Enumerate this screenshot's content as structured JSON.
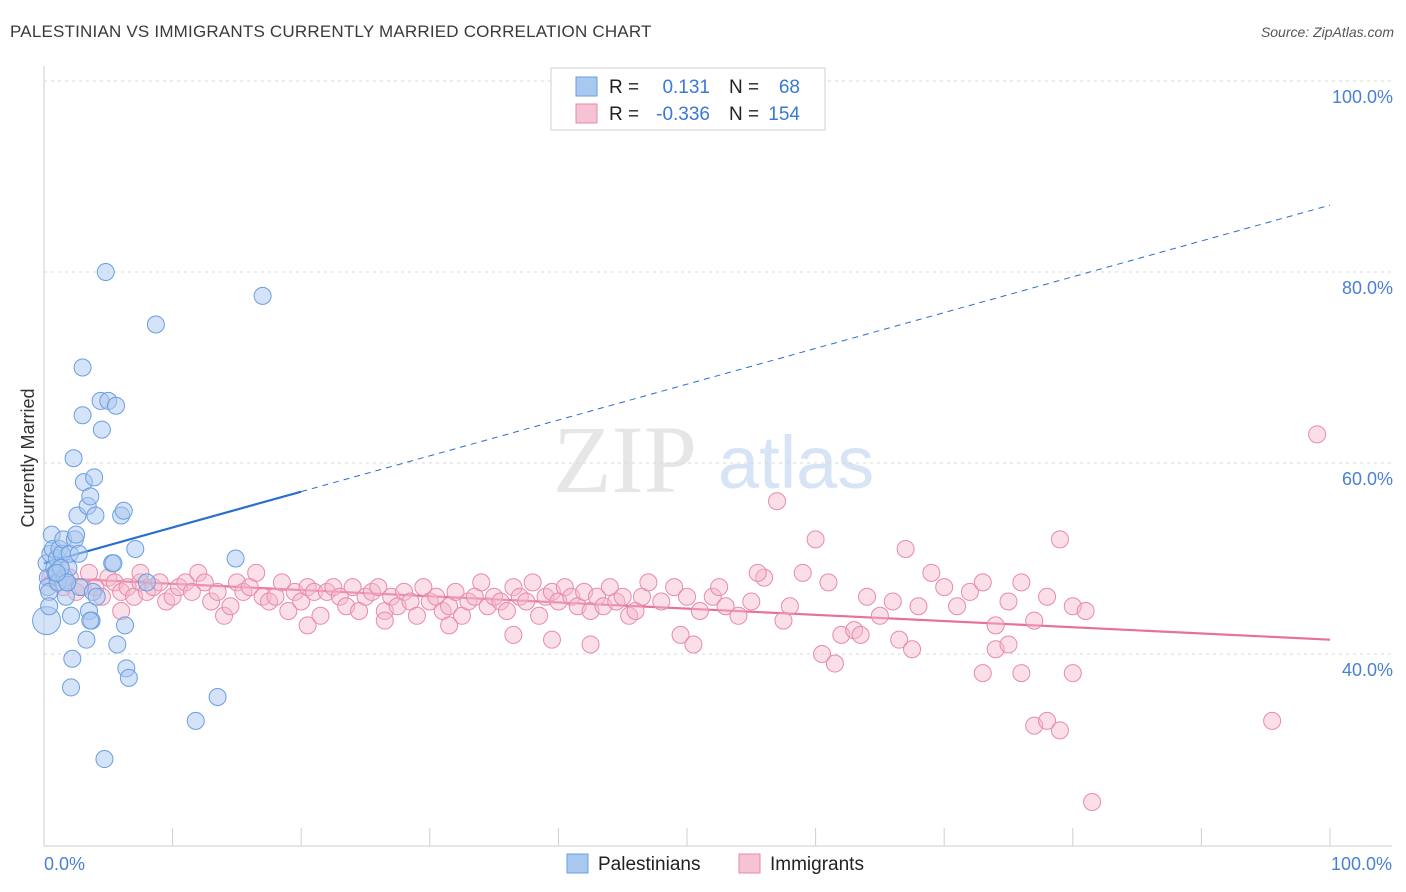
{
  "title": "PALESTINIAN VS IMMIGRANTS CURRENTLY MARRIED CORRELATION CHART",
  "source": "Source: ZipAtlas.com",
  "watermark": {
    "zip": "ZIP",
    "atlas": "atlas"
  },
  "colors": {
    "blue_fill": "#a9c8f0",
    "blue_stroke": "#6b9ee0",
    "blue_line": "#2a6fcf",
    "pink_fill": "#f5b8cc",
    "pink_stroke": "#e88aa9",
    "pink_line": "#e8709a",
    "grid": "#d9d9d9",
    "axis_text": "#4a7fd4"
  },
  "legend": {
    "rows": [
      {
        "r_label": "R =",
        "r_value": "0.131",
        "n_label": "N =",
        "n_value": "68"
      },
      {
        "r_label": "R =",
        "r_value": "-0.336",
        "n_label": "N =",
        "n_value": "154"
      }
    ]
  },
  "bottom_legend": [
    "Palestinians",
    "Immigrants"
  ],
  "chart_data": {
    "type": "scatter",
    "title": "PALESTINIAN VS IMMIGRANTS CURRENTLY MARRIED CORRELATION CHART",
    "xlabel": "",
    "ylabel": "Currently Married",
    "xlim": [
      0,
      100
    ],
    "ylim": [
      20,
      100
    ],
    "x_tick_labels": [
      "0.0%",
      "100.0%"
    ],
    "y_tick_labels": [
      "40.0%",
      "60.0%",
      "80.0%",
      "100.0%"
    ],
    "y_ticks": [
      40,
      60,
      80,
      100
    ],
    "series": [
      {
        "name": "Palestinians",
        "r": 0.131,
        "n": 68,
        "trend": {
          "x0": 0,
          "y0": 49.5,
          "x1": 20,
          "y1": 57.0,
          "dashed_to_x": 100,
          "dashed_to_y": 87.0
        },
        "points": [
          [
            0.2,
            49.5
          ],
          [
            0.3,
            48
          ],
          [
            0.3,
            47
          ],
          [
            0.4,
            46.5
          ],
          [
            0.5,
            50.5
          ],
          [
            0.6,
            52.5
          ],
          [
            0.7,
            51
          ],
          [
            0.8,
            49
          ],
          [
            0.9,
            48.5
          ],
          [
            1.0,
            50
          ],
          [
            1.1,
            47.5
          ],
          [
            1.2,
            51
          ],
          [
            1.3,
            49
          ],
          [
            1.4,
            50.5
          ],
          [
            1.5,
            52
          ],
          [
            1.6,
            48
          ],
          [
            1.7,
            46
          ],
          [
            1.8,
            47.5
          ],
          [
            1.9,
            49
          ],
          [
            2.0,
            50.5
          ],
          [
            2.1,
            44
          ],
          [
            2.2,
            39.5
          ],
          [
            2.3,
            60.5
          ],
          [
            2.4,
            52
          ],
          [
            2.6,
            54.5
          ],
          [
            2.7,
            50.5
          ],
          [
            2.8,
            47
          ],
          [
            3.0,
            65
          ],
          [
            3.0,
            70
          ],
          [
            3.1,
            58
          ],
          [
            3.3,
            41.5
          ],
          [
            3.4,
            55.5
          ],
          [
            3.5,
            44.5
          ],
          [
            3.6,
            56.5
          ],
          [
            3.7,
            43.5
          ],
          [
            3.8,
            46.5
          ],
          [
            3.9,
            58.5
          ],
          [
            4.0,
            54.5
          ],
          [
            4.1,
            46
          ],
          [
            4.4,
            66.5
          ],
          [
            4.5,
            63.5
          ],
          [
            4.8,
            80
          ],
          [
            5.0,
            66.5
          ],
          [
            5.3,
            49.5
          ],
          [
            5.6,
            66
          ],
          [
            5.7,
            41
          ],
          [
            6.0,
            54.5
          ],
          [
            6.2,
            55
          ],
          [
            6.3,
            43
          ],
          [
            6.4,
            38.5
          ],
          [
            6.6,
            37.5
          ],
          [
            7.1,
            51
          ],
          [
            8.0,
            47.5
          ],
          [
            8.7,
            74.5
          ],
          [
            11.8,
            33
          ],
          [
            13.5,
            35.5
          ],
          [
            14.9,
            50
          ],
          [
            17.0,
            77.5
          ],
          [
            4.7,
            29
          ],
          [
            2.1,
            36.5
          ],
          [
            0.2,
            43.5
          ],
          [
            0.4,
            45
          ],
          [
            1.3,
            49
          ],
          [
            1.8,
            47.5
          ],
          [
            3.6,
            43.5
          ],
          [
            2.5,
            52.5
          ],
          [
            5.4,
            49.5
          ],
          [
            1.0,
            48.5
          ]
        ]
      },
      {
        "name": "Immigrants",
        "r": -0.336,
        "n": 154,
        "trend": {
          "x0": 0,
          "y0": 48.0,
          "x1": 100,
          "y1": 41.5
        },
        "points": [
          [
            0.5,
            48
          ],
          [
            1.0,
            47.5
          ],
          [
            1.5,
            47
          ],
          [
            2.0,
            48
          ],
          [
            2.5,
            46.5
          ],
          [
            3.0,
            47
          ],
          [
            3.5,
            48.5
          ],
          [
            4.0,
            47
          ],
          [
            4.5,
            46
          ],
          [
            5.0,
            48
          ],
          [
            5.5,
            47.5
          ],
          [
            6.0,
            46.5
          ],
          [
            6.5,
            47
          ],
          [
            7.0,
            46
          ],
          [
            7.5,
            47.5
          ],
          [
            8.0,
            46.5
          ],
          [
            8.5,
            47
          ],
          [
            9.0,
            47.5
          ],
          [
            9.5,
            45.5
          ],
          [
            10.0,
            46
          ],
          [
            10.5,
            47
          ],
          [
            11.0,
            47.5
          ],
          [
            11.5,
            46.5
          ],
          [
            12.0,
            48.5
          ],
          [
            12.5,
            47.5
          ],
          [
            13.0,
            45.5
          ],
          [
            13.5,
            46.5
          ],
          [
            14.0,
            44
          ],
          [
            14.5,
            45
          ],
          [
            15.0,
            47.5
          ],
          [
            15.5,
            46.5
          ],
          [
            16.0,
            47
          ],
          [
            16.5,
            48.5
          ],
          [
            17.0,
            46
          ],
          [
            17.5,
            45.5
          ],
          [
            18.0,
            46
          ],
          [
            18.5,
            47.5
          ],
          [
            19.0,
            44.5
          ],
          [
            19.5,
            46.5
          ],
          [
            20.0,
            45.5
          ],
          [
            20.5,
            47
          ],
          [
            21.0,
            46.5
          ],
          [
            21.5,
            44
          ],
          [
            22.0,
            46.5
          ],
          [
            22.5,
            47
          ],
          [
            23.0,
            46
          ],
          [
            23.5,
            45
          ],
          [
            24.0,
            47
          ],
          [
            24.5,
            44.5
          ],
          [
            25.0,
            46
          ],
          [
            25.5,
            46.5
          ],
          [
            26.0,
            47
          ],
          [
            26.5,
            44.5
          ],
          [
            27.0,
            46
          ],
          [
            27.5,
            45
          ],
          [
            28.0,
            46.5
          ],
          [
            28.5,
            45.5
          ],
          [
            29.0,
            44
          ],
          [
            29.5,
            47
          ],
          [
            30.0,
            45.5
          ],
          [
            30.5,
            46
          ],
          [
            31.0,
            44.5
          ],
          [
            31.5,
            45
          ],
          [
            32.0,
            46.5
          ],
          [
            32.5,
            44
          ],
          [
            33.0,
            45.5
          ],
          [
            33.5,
            46
          ],
          [
            34.0,
            47.5
          ],
          [
            34.5,
            45
          ],
          [
            35.0,
            46
          ],
          [
            35.5,
            45.5
          ],
          [
            36.0,
            44.5
          ],
          [
            36.5,
            47
          ],
          [
            37.0,
            46
          ],
          [
            37.5,
            45.5
          ],
          [
            38.0,
            47.5
          ],
          [
            38.5,
            44
          ],
          [
            39.0,
            46
          ],
          [
            39.5,
            46.5
          ],
          [
            40.0,
            45.5
          ],
          [
            40.5,
            47
          ],
          [
            41.0,
            46
          ],
          [
            41.5,
            45
          ],
          [
            42.0,
            46.5
          ],
          [
            42.5,
            44.5
          ],
          [
            43.0,
            46
          ],
          [
            43.5,
            45
          ],
          [
            44.0,
            47
          ],
          [
            44.5,
            45.5
          ],
          [
            45.0,
            46
          ],
          [
            45.5,
            44
          ],
          [
            46.0,
            44.5
          ],
          [
            46.5,
            46
          ],
          [
            47.0,
            47.5
          ],
          [
            48.0,
            45.5
          ],
          [
            49.0,
            47
          ],
          [
            50.0,
            46
          ],
          [
            51.0,
            44.5
          ],
          [
            52.0,
            46
          ],
          [
            53.0,
            45
          ],
          [
            54.0,
            44
          ],
          [
            55.0,
            45.5
          ],
          [
            56.0,
            48
          ],
          [
            57.0,
            56
          ],
          [
            58.0,
            45
          ],
          [
            59.0,
            48.5
          ],
          [
            60.0,
            52
          ],
          [
            61.0,
            47.5
          ],
          [
            62.0,
            42
          ],
          [
            63.0,
            42.5
          ],
          [
            64.0,
            46
          ],
          [
            65.0,
            44
          ],
          [
            66.0,
            45.5
          ],
          [
            67.0,
            51
          ],
          [
            68.0,
            45
          ],
          [
            69.0,
            48.5
          ],
          [
            70.0,
            47
          ],
          [
            71.0,
            45
          ],
          [
            72.0,
            46.5
          ],
          [
            73.0,
            47.5
          ],
          [
            74.0,
            43
          ],
          [
            75.0,
            45.5
          ],
          [
            76.0,
            47.5
          ],
          [
            77.0,
            43.5
          ],
          [
            78.0,
            46
          ],
          [
            79.0,
            52
          ],
          [
            80.0,
            45
          ],
          [
            81.0,
            44.5
          ],
          [
            66.5,
            41.5
          ],
          [
            67.5,
            40.5
          ],
          [
            60.5,
            40
          ],
          [
            61.5,
            39
          ],
          [
            63.5,
            42
          ],
          [
            49.5,
            42
          ],
          [
            50.5,
            41
          ],
          [
            57.5,
            43.5
          ],
          [
            55.5,
            48.5
          ],
          [
            52.5,
            47
          ],
          [
            42.5,
            41
          ],
          [
            39.5,
            41.5
          ],
          [
            36.5,
            42
          ],
          [
            31.5,
            43
          ],
          [
            26.5,
            43.5
          ],
          [
            20.5,
            43
          ],
          [
            7.5,
            48.5
          ],
          [
            6.0,
            44.5
          ],
          [
            73.0,
            38
          ],
          [
            74.0,
            40.5
          ],
          [
            75.0,
            41
          ],
          [
            76.0,
            38
          ],
          [
            77.0,
            32.5
          ],
          [
            78.0,
            33
          ],
          [
            79.0,
            32
          ],
          [
            80.0,
            38
          ],
          [
            81.5,
            24.5
          ],
          [
            95.5,
            33
          ],
          [
            99.0,
            63
          ]
        ]
      }
    ]
  }
}
